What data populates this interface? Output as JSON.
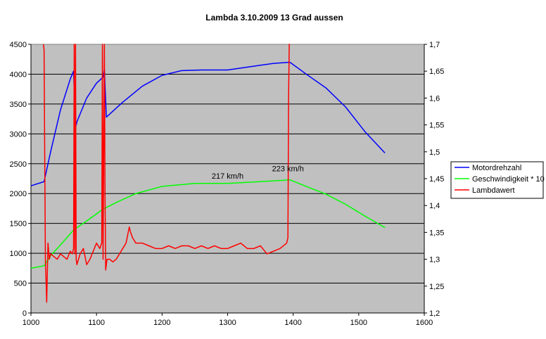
{
  "chart_data": {
    "type": "line",
    "title": "Lambda 3.10.2009 13 Grad aussen",
    "xlabel": "",
    "ylabel": "",
    "xlim": [
      1000,
      1600
    ],
    "ylim": [
      0,
      4500
    ],
    "y2lim": [
      1.2,
      1.7
    ],
    "x_ticks": [
      1000,
      1100,
      1200,
      1300,
      1400,
      1500,
      1600
    ],
    "y_ticks": [
      0,
      500,
      1000,
      1500,
      2000,
      2500,
      3000,
      3500,
      4000,
      4500
    ],
    "y2_ticks": [
      "1,2",
      "1,25",
      "1,3",
      "1,35",
      "1,4",
      "1,45",
      "1,5",
      "1,55",
      "1,6",
      "1,65",
      "1,7"
    ],
    "grid": "horizontal",
    "plot_background": "#C0C0C0",
    "legend_position": "right",
    "annotations": [
      {
        "text": "217 km/h",
        "x": 1300,
        "y": 2250
      },
      {
        "text": "223 km/h",
        "x": 1392,
        "y": 2375
      }
    ],
    "series": [
      {
        "name": "Motordrehzahl",
        "color": "#0000FF",
        "axis": "left",
        "x": [
          1000,
          1020,
          1030,
          1045,
          1060,
          1065,
          1068,
          1070,
          1085,
          1100,
          1110,
          1112,
          1115,
          1140,
          1170,
          1200,
          1230,
          1260,
          1300,
          1350,
          1370,
          1395,
          1420,
          1450,
          1480,
          1510,
          1540
        ],
        "y": [
          2130,
          2200,
          2700,
          3400,
          3920,
          4050,
          3100,
          3200,
          3600,
          3850,
          3950,
          4080,
          3280,
          3530,
          3800,
          3980,
          4060,
          4070,
          4070,
          4150,
          4180,
          4200,
          4000,
          3770,
          3450,
          3030,
          2680
        ]
      },
      {
        "name": "Geschwindigkeit * 10",
        "color": "#00FF00",
        "axis": "left",
        "x": [
          1000,
          1020,
          1030,
          1050,
          1065,
          1090,
          1110,
          1130,
          1160,
          1200,
          1250,
          1300,
          1350,
          1395,
          1420,
          1450,
          1480,
          1510,
          1540
        ],
        "y": [
          750,
          790,
          960,
          1200,
          1390,
          1580,
          1740,
          1850,
          2000,
          2120,
          2170,
          2170,
          2200,
          2230,
          2120,
          1990,
          1820,
          1620,
          1430
        ]
      },
      {
        "name": "Lambdawert",
        "color": "#FF0000",
        "axis": "right",
        "x": [
          1000,
          1019,
          1020,
          1022,
          1024,
          1026,
          1028,
          1030,
          1035,
          1040,
          1045,
          1050,
          1055,
          1060,
          1063,
          1065,
          1066,
          1067,
          1068,
          1069,
          1070,
          1075,
          1080,
          1085,
          1090,
          1095,
          1100,
          1105,
          1108,
          1109,
          1110,
          1112,
          1113,
          1114,
          1116,
          1120,
          1125,
          1130,
          1135,
          1140,
          1145,
          1150,
          1152,
          1155,
          1160,
          1170,
          1180,
          1190,
          1200,
          1210,
          1220,
          1230,
          1240,
          1250,
          1260,
          1270,
          1280,
          1290,
          1300,
          1310,
          1320,
          1330,
          1340,
          1350,
          1360,
          1370,
          1380,
          1390,
          1392,
          1393,
          1394,
          1395
        ],
        "y": [
          null,
          1.7,
          1.69,
          1.3,
          1.22,
          1.33,
          1.3,
          1.31,
          1.305,
          1.3,
          1.31,
          1.305,
          1.3,
          1.315,
          1.31,
          1.32,
          1.7,
          1.31,
          1.7,
          1.3,
          1.29,
          1.31,
          1.32,
          1.29,
          1.3,
          1.315,
          1.33,
          1.32,
          1.33,
          1.7,
          1.3,
          1.7,
          1.42,
          1.28,
          1.3,
          1.3,
          1.295,
          1.3,
          1.31,
          1.32,
          1.33,
          1.36,
          1.35,
          1.34,
          1.33,
          1.33,
          1.325,
          1.32,
          1.32,
          1.325,
          1.32,
          1.325,
          1.325,
          1.32,
          1.325,
          1.32,
          1.325,
          1.32,
          1.32,
          1.325,
          1.33,
          1.32,
          1.32,
          1.325,
          1.31,
          1.315,
          1.32,
          1.33,
          1.34,
          1.6,
          1.7,
          1.7
        ]
      }
    ]
  }
}
